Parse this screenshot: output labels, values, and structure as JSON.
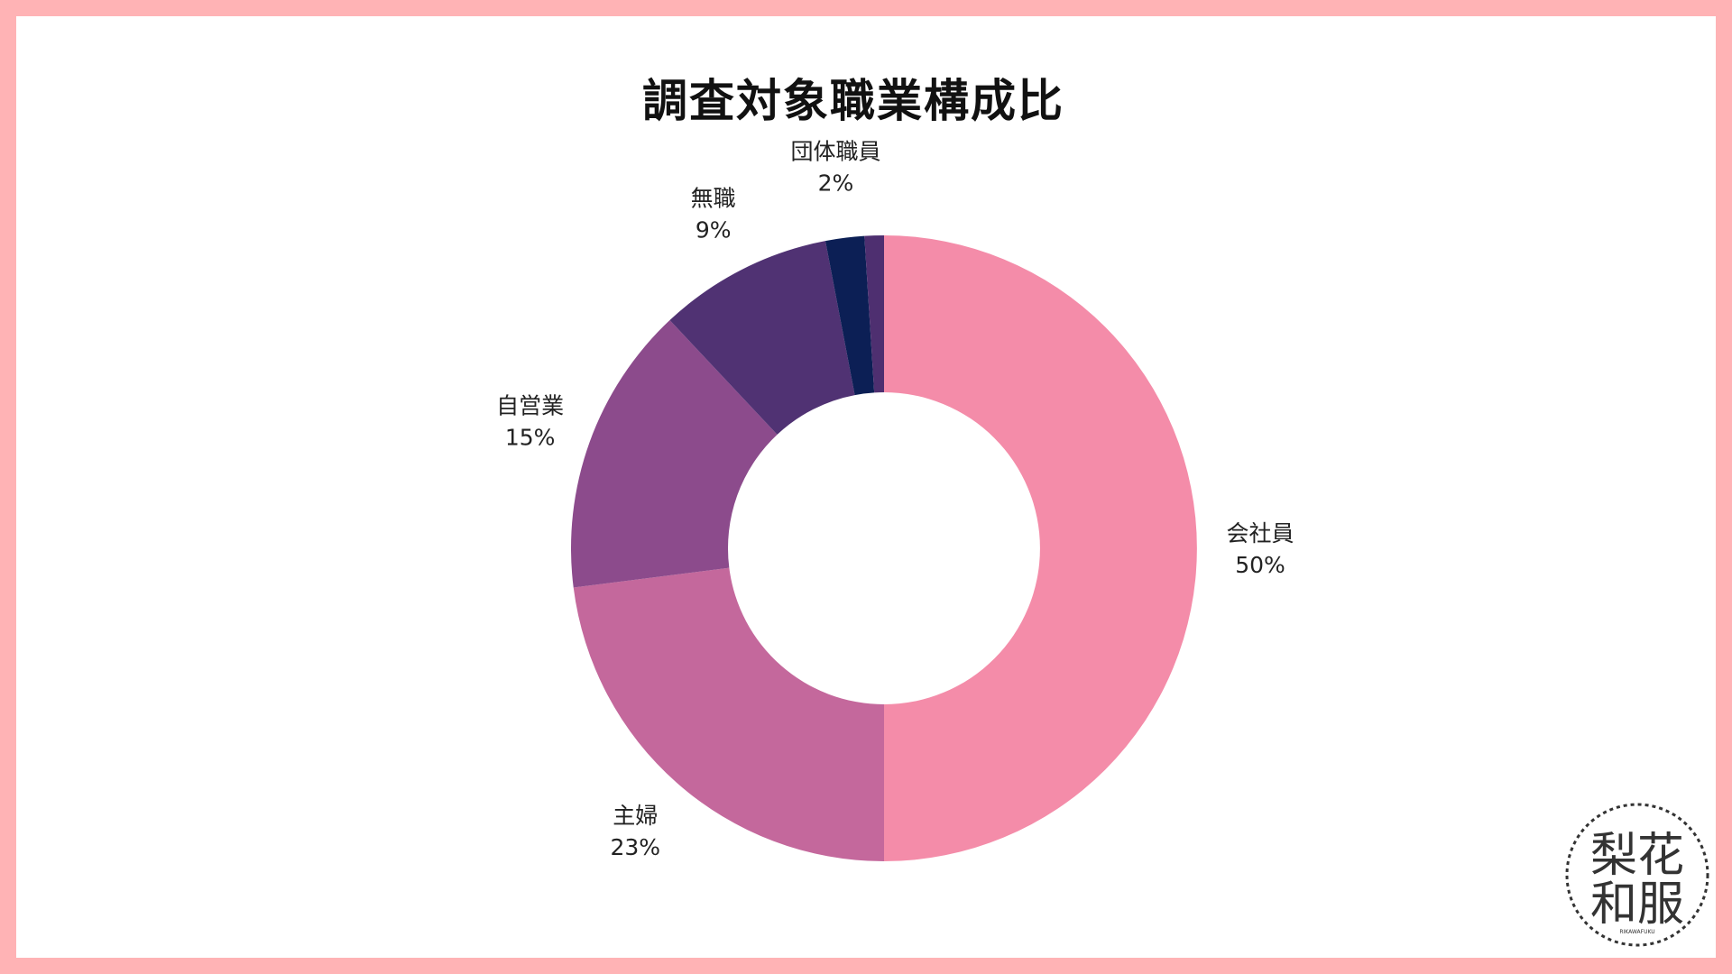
{
  "chart_data": {
    "type": "pie",
    "title": "調査対象職業構成比",
    "categories": [
      "会社員",
      "主婦",
      "自営業",
      "無職",
      "団体職員"
    ],
    "values": [
      50,
      23,
      15,
      9,
      2
    ],
    "value_labels": [
      "50%",
      "23%",
      "15%",
      "9%",
      "2%"
    ],
    "colors": [
      "#f48ca9",
      "#c4689c",
      "#8c4b8c",
      "#503273",
      "#0c1f55"
    ],
    "remainder_color": "#4e2f70",
    "donut": true,
    "start": "12 o'clock",
    "direction": "clockwise"
  },
  "frame_color": "#ffb3b5",
  "logo": {
    "text_top": "梨花",
    "text_bottom": "和服",
    "sub": "RIKAWAFUKU"
  }
}
